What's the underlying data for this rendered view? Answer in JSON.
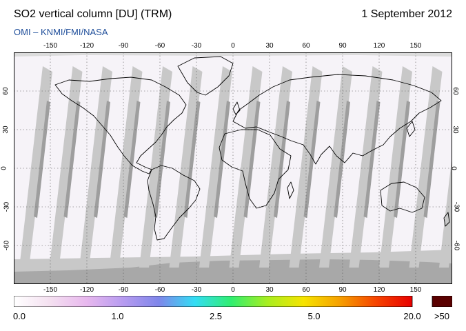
{
  "header": {
    "title": "SO2 vertical column [DU] (TRM)",
    "date": "1 September 2012",
    "credit": "OMI  –  KNMI/FMI/NASA"
  },
  "map": {
    "projection": "equirectangular",
    "lon_range": [
      -180,
      180
    ],
    "lat_range": [
      -90,
      90
    ],
    "lon_ticks": [
      -150,
      -120,
      -90,
      -60,
      -30,
      0,
      30,
      60,
      90,
      120,
      150
    ],
    "lat_ticks": [
      -60,
      -30,
      0,
      30,
      60
    ],
    "lon_tick_labels": [
      "-150",
      "-120",
      "-90",
      "-60",
      "-30",
      "0",
      "30",
      "60",
      "90",
      "120",
      "150"
    ],
    "lat_tick_labels": [
      "-60",
      "-30",
      "0",
      "30",
      "60"
    ],
    "grid": "dotted",
    "no_data_color": "#c8c8c8",
    "swath_gap_color": "#9e9e9e",
    "background_color": "#f6f3f8"
  },
  "colorbar": {
    "tick_labels": [
      "0.0",
      "1.0",
      "2.5",
      "5.0",
      "20.0"
    ],
    "overflow_label": ">50",
    "overflow_color": "#5a0000",
    "colors": [
      "#ffffff",
      "#f4e0f0",
      "#e8b8ee",
      "#b89cf0",
      "#7f86ea",
      "#33ddf4",
      "#30ee70",
      "#a8ee20",
      "#f6e400",
      "#f6a000",
      "#f64400",
      "#e80000"
    ]
  }
}
